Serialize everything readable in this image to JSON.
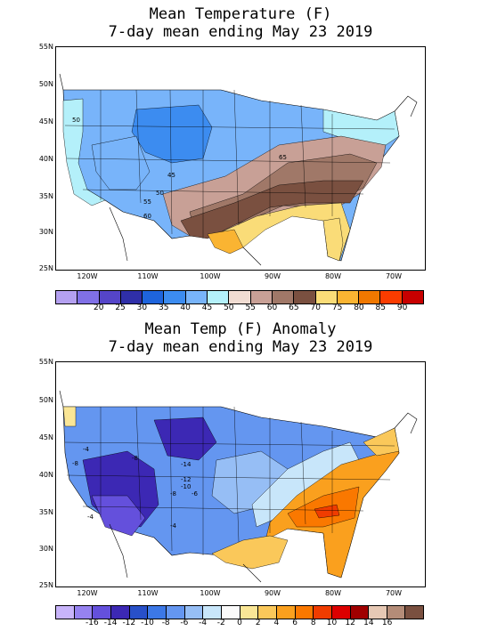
{
  "top_map": {
    "title_line1": "Mean Temperature (F)",
    "title_line2": "7-day mean ending May 23 2019",
    "lat_labels": [
      "55N",
      "50N",
      "45N",
      "40N",
      "35N",
      "30N",
      "25N"
    ],
    "lon_labels": [
      "120W",
      "110W",
      "100W",
      "90W",
      "80W",
      "70W"
    ],
    "contour_labels": [
      "50",
      "45",
      "50",
      "55",
      "60",
      "65"
    ],
    "colorbar": {
      "colors": [
        "#b4a0f0",
        "#8070e6",
        "#5545c8",
        "#2f2fa8",
        "#1e64dc",
        "#3c8cf0",
        "#78b4fa",
        "#b4f0fa",
        "#f0dcd2",
        "#c8a096",
        "#a07868",
        "#7a5040",
        "#fadc78",
        "#fab432",
        "#f07800",
        "#fa3c00",
        "#c80000"
      ],
      "ticks": [
        "20",
        "25",
        "30",
        "35",
        "40",
        "45",
        "50",
        "55",
        "60",
        "65",
        "70",
        "75",
        "80",
        "85",
        "90"
      ]
    }
  },
  "bottom_map": {
    "title_line1": "Mean Temp (F) Anomaly",
    "title_line2": "7-day mean ending May 23 2019",
    "lat_labels": [
      "55N",
      "50N",
      "45N",
      "40N",
      "35N",
      "30N",
      "25N"
    ],
    "lon_labels": [
      "120W",
      "110W",
      "100W",
      "90W",
      "80W",
      "70W"
    ],
    "contour_labels": [
      "-4",
      "-8",
      "-8",
      "-14",
      "-12",
      "-10",
      "-8",
      "-6",
      "-4",
      "-4"
    ],
    "colorbar": {
      "colors": [
        "#c8b4fa",
        "#9682f0",
        "#6450dc",
        "#3c28b4",
        "#2850c8",
        "#3c78e6",
        "#6496f0",
        "#96bef5",
        "#c8e6fa",
        "#fafafa",
        "#fae696",
        "#fac85a",
        "#faa01e",
        "#fa7800",
        "#f03c00",
        "#dc0000",
        "#a00000",
        "#e6c8b4",
        "#b48c78",
        "#7a5040"
      ],
      "ticks": [
        "-16",
        "-14",
        "-12",
        "-10",
        "-8",
        "-6",
        "-4",
        "-2",
        "0",
        "2",
        "4",
        "6",
        "8",
        "10",
        "12",
        "14",
        "16"
      ]
    }
  }
}
